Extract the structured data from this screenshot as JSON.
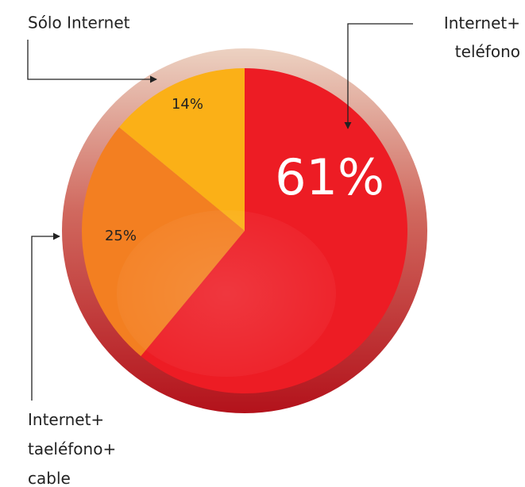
{
  "chart_data": {
    "type": "pie",
    "categories": [
      "Internet+\nteléfono",
      "Internet+\ntaeléfono+\ncable",
      "Sólo Internet"
    ],
    "values": [
      61,
      25,
      14
    ],
    "value_labels": [
      "61%",
      "25%",
      "14%"
    ],
    "colors": [
      "#ed1c24",
      "#f37f21",
      "#fbb017"
    ]
  }
}
